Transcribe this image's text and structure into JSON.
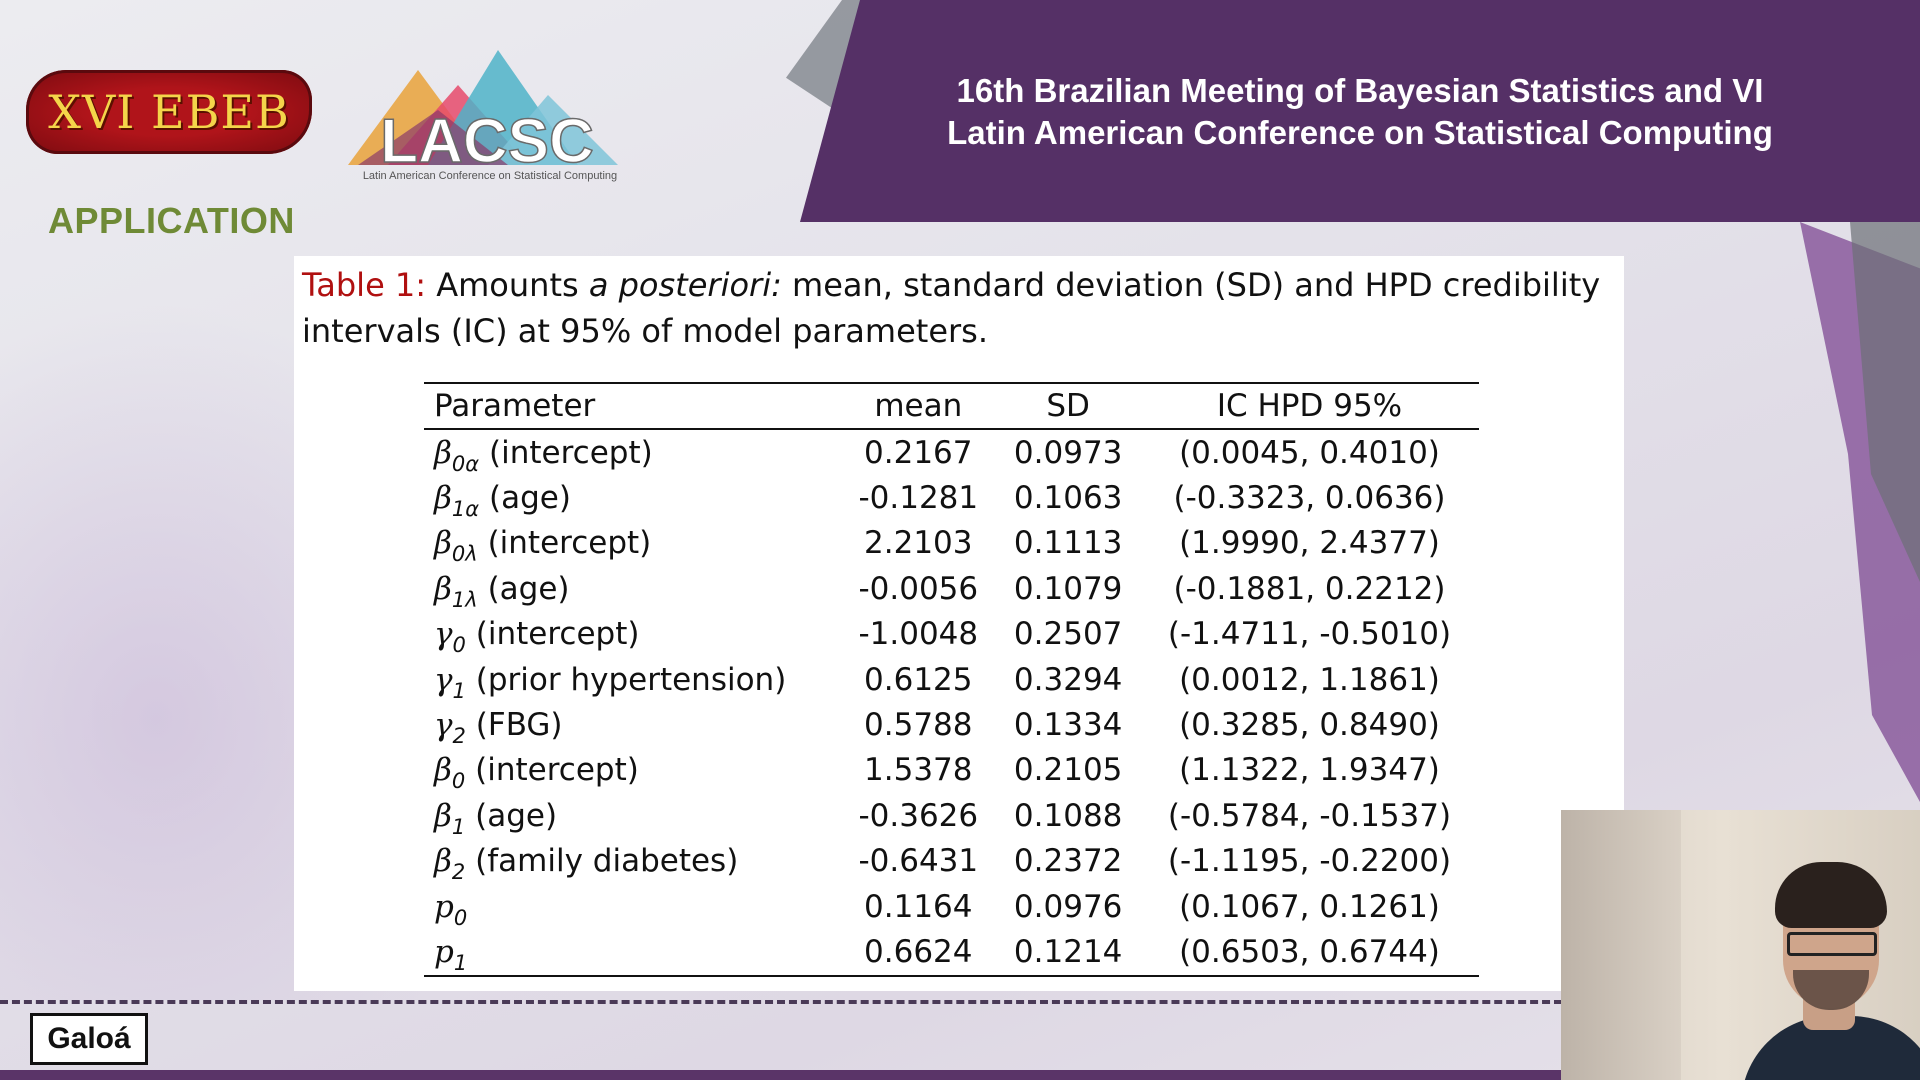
{
  "header": {
    "title_line1": "16th Brazilian Meeting of Bayesian Statistics and VI",
    "title_line2": "Latin American Conference on Statistical Computing"
  },
  "logos": {
    "ebeb_text": "XVI EBEB",
    "lacsc_text": "LACSC",
    "lacsc_subtitle": "Latin American Conference on Statistical Computing"
  },
  "section": {
    "heading": "APPLICATION"
  },
  "table": {
    "caption_label": "Table 1:",
    "caption_pre": "Amounts",
    "caption_emph": "a posteriori:",
    "caption_post": "mean, standard deviation (SD) and HPD credibility intervals (IC) at 95% of model parameters.",
    "headers": [
      "Parameter",
      "mean",
      "SD",
      "IC HPD 95%"
    ],
    "rows": [
      {
        "sym": "β",
        "sub": "0α",
        "desc": "(intercept)",
        "mean": "0.2167",
        "sd": "0.0973",
        "ic": "(0.0045, 0.4010)"
      },
      {
        "sym": "β",
        "sub": "1α",
        "desc": "(age)",
        "mean": "-0.1281",
        "sd": "0.1063",
        "ic": "(-0.3323, 0.0636)"
      },
      {
        "sym": "β",
        "sub": "0λ",
        "desc": "(intercept)",
        "mean": "2.2103",
        "sd": "0.1113",
        "ic": "(1.9990, 2.4377)"
      },
      {
        "sym": "β",
        "sub": "1λ",
        "desc": "(age)",
        "mean": "-0.0056",
        "sd": "0.1079",
        "ic": "(-0.1881, 0.2212)"
      },
      {
        "sym": "γ",
        "sub": "0",
        "desc": "(intercept)",
        "mean": "-1.0048",
        "sd": "0.2507",
        "ic": "(-1.4711, -0.5010)"
      },
      {
        "sym": "γ",
        "sub": "1",
        "desc": "(prior hypertension)",
        "mean": "0.6125",
        "sd": "0.3294",
        "ic": "(0.0012, 1.1861)"
      },
      {
        "sym": "γ",
        "sub": "2",
        "desc": "(FBG)",
        "mean": "0.5788",
        "sd": "0.1334",
        "ic": "(0.3285, 0.8490)"
      },
      {
        "sym": "β",
        "sub": "0",
        "desc": "(intercept)",
        "mean": "1.5378",
        "sd": "0.2105",
        "ic": "(1.1322, 1.9347)"
      },
      {
        "sym": "β",
        "sub": "1",
        "desc": "(age)",
        "mean": "-0.3626",
        "sd": "0.1088",
        "ic": "(-0.5784, -0.1537)"
      },
      {
        "sym": "β",
        "sub": "2",
        "desc": "(family diabetes)",
        "mean": "-0.6431",
        "sd": "0.2372",
        "ic": "(-1.1195, -0.2200)"
      },
      {
        "sym": "p",
        "sub": "0",
        "desc": "",
        "mean": "0.1164",
        "sd": "0.0976",
        "ic": "(0.1067, 0.1261)"
      },
      {
        "sym": "p",
        "sub": "1",
        "desc": "",
        "mean": "0.6624",
        "sd": "0.1214",
        "ic": "(0.6503, 0.6744)"
      }
    ]
  },
  "footer": {
    "brand": "Galoá"
  },
  "colors": {
    "banner": "#553066",
    "heading": "#6f8a36",
    "caption_label": "#b01010"
  }
}
